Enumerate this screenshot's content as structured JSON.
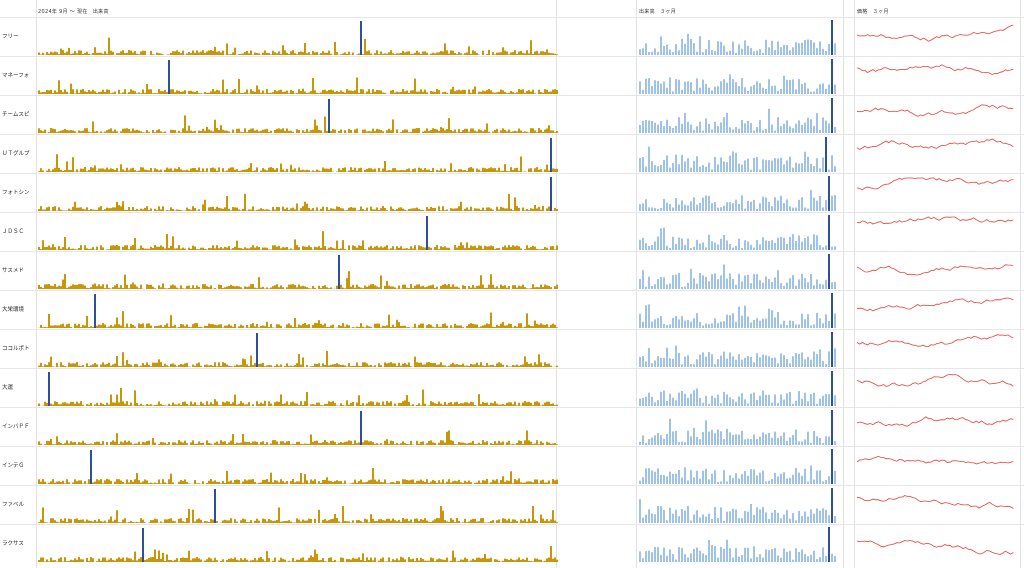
{
  "headers": {
    "col1": "2024年 9月 〜 現在　出来高",
    "col2": "出来高　３ヶ月",
    "col3": "価格　３ヶ月"
  },
  "colors": {
    "volume_long": "#c8960a",
    "volume_short": "#9fc3e8",
    "highlight": "#2f4f9a",
    "price_line": "#e8403a",
    "grid": "#e2e2e2"
  },
  "chart_data": {
    "type": "bar",
    "panels": [
      "2024年 9月 〜 現在 出来高 (bar)",
      "出来高 ３ヶ月 (bar)",
      "価格 ３ヶ月 (line)"
    ],
    "rows": [
      {
        "name": "フリー",
        "long_spike": 0.62,
        "short_spike": 0.98
      },
      {
        "name": "マネーフォ",
        "long_spike": 0.25,
        "short_spike": 0.98
      },
      {
        "name": "チームスピ",
        "long_spike": 0.56,
        "short_spike": 0.98
      },
      {
        "name": "ＵＴグルプ",
        "long_spike": 0.99,
        "short_spike": 0.96
      },
      {
        "name": "フォトシン",
        "long_spike": 0.99,
        "short_spike": 0.97
      },
      {
        "name": "ＪＤＳＣ",
        "long_spike": 0.75,
        "short_spike": 0.97
      },
      {
        "name": "サスメド",
        "long_spike": 0.58,
        "short_spike": 0.97
      },
      {
        "name": "大栄環境",
        "long_spike": 0.11,
        "short_spike": 0.98
      },
      {
        "name": "ココルポト",
        "long_spike": 0.42,
        "short_spike": 0.98
      },
      {
        "name": "大運",
        "long_spike": 0.02,
        "short_spike": 0.98
      },
      {
        "name": "インバＰＦ",
        "long_spike": 0.62,
        "short_spike": 0.98
      },
      {
        "name": "インテＧ",
        "long_spike": 0.1,
        "short_spike": 0.98
      },
      {
        "name": "ファベル",
        "long_spike": 0.34,
        "short_spike": 0.98
      },
      {
        "name": "ラクサス",
        "long_spike": 0.2,
        "short_spike": 0.97
      }
    ]
  }
}
